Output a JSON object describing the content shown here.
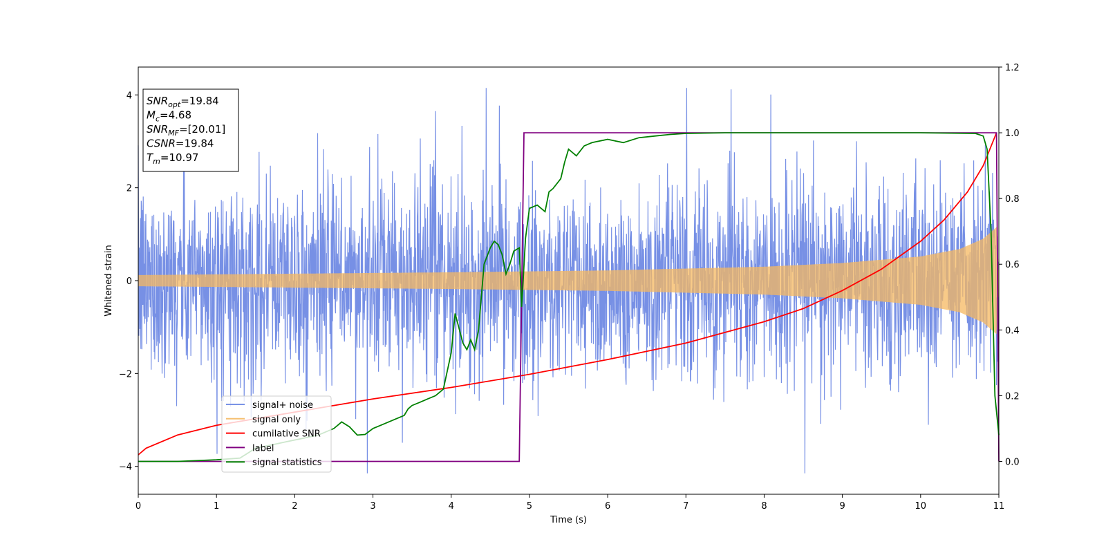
{
  "chart_data": {
    "type": "line",
    "xlabel": "Time (s)",
    "ylabel": "Whitened strain",
    "xlim": [
      0,
      11
    ],
    "ylim": [
      -4.6,
      4.6
    ],
    "ylim_right": [
      -0.1,
      1.2
    ],
    "x_ticks": [
      "0",
      "1",
      "2",
      "3",
      "4",
      "5",
      "6",
      "7",
      "8",
      "9",
      "10",
      "11"
    ],
    "y_ticks": [
      "4",
      "2",
      "0",
      "−2",
      "−4"
    ],
    "y_ticks_right": [
      "1.2",
      "1.0",
      "0.8",
      "0.6",
      "0.4",
      "0.2",
      "0.0"
    ],
    "legend_position": "lower-left",
    "info_box": {
      "lines": [
        {
          "sym": "SNR",
          "sub": "opt",
          "val": "=19.84"
        },
        {
          "sym": "M",
          "sub": "c",
          "val": "=4.68"
        },
        {
          "sym": "SNR",
          "sub": "MF",
          "val": "=[20.01]"
        },
        {
          "sym": "CSNR",
          "sub": "",
          "val": "=19.84"
        },
        {
          "sym": "T",
          "sub": "m",
          "val": "=10.97"
        }
      ]
    },
    "series": [
      {
        "name": "signal+ noise",
        "color": "#6b87e3",
        "axis": "left",
        "note_values": "dense noise, amplitude envelope ~ ±2.5, spikes to ±4.2"
      },
      {
        "name": "signal only",
        "color": "#f5b860",
        "axis": "left",
        "envelope": {
          "x": [
            0,
            2,
            4,
            6,
            8,
            9,
            10,
            10.5,
            10.8,
            10.97,
            11
          ],
          "amp": [
            0.12,
            0.15,
            0.18,
            0.22,
            0.3,
            0.38,
            0.52,
            0.68,
            0.9,
            1.15,
            0.0
          ]
        }
      },
      {
        "name": "cumilative SNR",
        "color": "#ff0000",
        "axis": "right",
        "x": [
          0,
          0.1,
          0.5,
          1,
          2,
          3,
          4,
          5,
          6,
          7,
          8,
          8.5,
          9,
          9.5,
          10,
          10.3,
          10.6,
          10.8,
          10.97
        ],
        "y": [
          0.02,
          0.04,
          0.08,
          0.11,
          0.15,
          0.19,
          0.225,
          0.265,
          0.31,
          0.36,
          0.425,
          0.465,
          0.52,
          0.585,
          0.67,
          0.735,
          0.82,
          0.9,
          1.0
        ]
      },
      {
        "name": "label",
        "color": "#800080",
        "axis": "right",
        "x": [
          0,
          4.87,
          4.93,
          10.97,
          11.0
        ],
        "y": [
          0.0,
          0.0,
          1.0,
          1.0,
          0.0
        ]
      },
      {
        "name": "signal statistics",
        "color": "#008000",
        "axis": "right",
        "x": [
          0,
          0.5,
          1.0,
          1.3,
          1.5,
          1.7,
          1.9,
          2.1,
          2.3,
          2.5,
          2.6,
          2.7,
          2.8,
          2.9,
          3.0,
          3.1,
          3.2,
          3.3,
          3.4,
          3.45,
          3.5,
          3.6,
          3.7,
          3.8,
          3.9,
          4.0,
          4.05,
          4.15,
          4.2,
          4.25,
          4.3,
          4.35,
          4.42,
          4.5,
          4.55,
          4.6,
          4.65,
          4.7,
          4.75,
          4.8,
          4.87,
          4.9,
          4.95,
          5.0,
          5.1,
          5.2,
          5.25,
          5.3,
          5.4,
          5.45,
          5.5,
          5.6,
          5.7,
          5.8,
          6.0,
          6.2,
          6.4,
          6.6,
          6.8,
          7.0,
          7.5,
          8.0,
          9.0,
          10.0,
          10.7,
          10.8,
          10.85,
          10.9,
          10.95,
          11.0
        ],
        "y": [
          0.0,
          0.0,
          0.005,
          0.01,
          0.04,
          0.05,
          0.06,
          0.07,
          0.08,
          0.1,
          0.12,
          0.105,
          0.08,
          0.082,
          0.1,
          0.11,
          0.12,
          0.13,
          0.14,
          0.16,
          0.17,
          0.18,
          0.19,
          0.2,
          0.22,
          0.33,
          0.45,
          0.36,
          0.34,
          0.37,
          0.34,
          0.4,
          0.6,
          0.65,
          0.67,
          0.66,
          0.63,
          0.57,
          0.6,
          0.64,
          0.65,
          0.47,
          0.68,
          0.77,
          0.78,
          0.76,
          0.82,
          0.83,
          0.86,
          0.91,
          0.95,
          0.93,
          0.96,
          0.97,
          0.98,
          0.97,
          0.985,
          0.99,
          0.995,
          0.998,
          1.0,
          1.0,
          1.0,
          1.0,
          0.998,
          0.99,
          0.95,
          0.7,
          0.2,
          0.08
        ]
      }
    ]
  }
}
